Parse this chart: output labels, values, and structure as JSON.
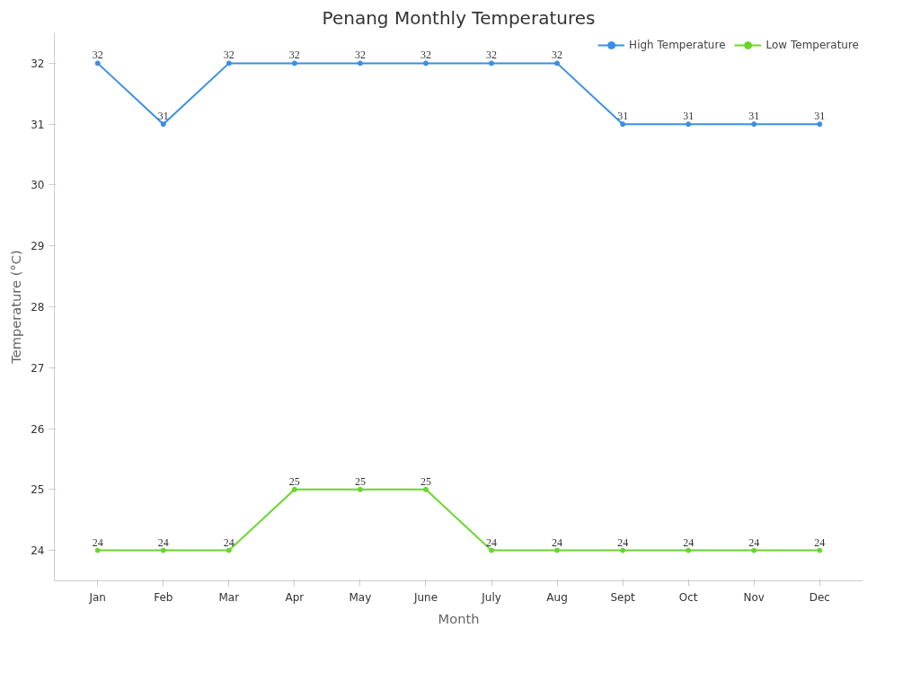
{
  "chart_data": {
    "type": "line",
    "title": "Penang Monthly Temperatures",
    "xlabel": "Month",
    "ylabel": "Temperature (°C)",
    "categories": [
      "Jan",
      "Feb",
      "Mar",
      "Apr",
      "May",
      "June",
      "July",
      "Aug",
      "Sept",
      "Oct",
      "Nov",
      "Dec"
    ],
    "series": [
      {
        "name": "High Temperature",
        "color": "#3a8ee6",
        "values": [
          32,
          31,
          32,
          32,
          32,
          32,
          32,
          32,
          31,
          31,
          31,
          31
        ]
      },
      {
        "name": "Low Temperature",
        "color": "#67d62a",
        "values": [
          24,
          24,
          24,
          25,
          25,
          25,
          24,
          24,
          24,
          24,
          24,
          24
        ]
      }
    ],
    "ylim": [
      23.5,
      32.5
    ],
    "yticks": [
      24,
      25,
      26,
      27,
      28,
      29,
      30,
      31,
      32
    ],
    "grid": false,
    "legend": "top right",
    "marker": "circle",
    "line_style": "solid",
    "data_labels": true
  }
}
